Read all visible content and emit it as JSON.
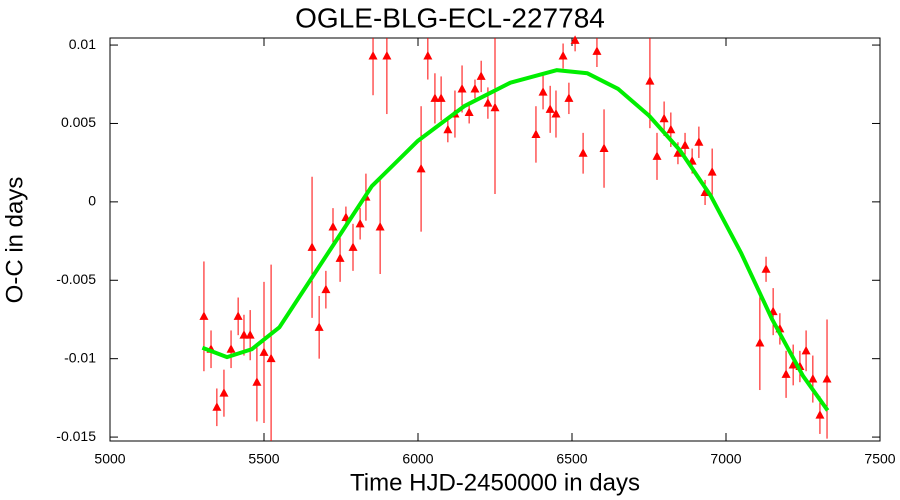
{
  "chart_data": {
    "type": "scatter",
    "title": "OGLE-BLG-ECL-227784",
    "x_label": "Time HJD-2450000 in days",
    "y_label": "O-C in days",
    "xlim": [
      5000,
      7500
    ],
    "ylim": [
      -0.01525,
      0.01045
    ],
    "xticks": [
      5000,
      5500,
      6000,
      6500,
      7000,
      7500
    ],
    "yticks": [
      -0.015,
      -0.01,
      -0.005,
      0,
      0.005,
      0.01
    ],
    "grid": false,
    "series": [
      {
        "type": "scatter",
        "color": "#ff0000",
        "x": [
          5305,
          5328,
          5347,
          5370,
          5393,
          5416,
          5435,
          5455,
          5477,
          5500,
          5523,
          5656,
          5679,
          5701,
          5724,
          5747,
          5766,
          5789,
          5812,
          5831,
          5854,
          5877,
          5899,
          6010,
          6032,
          6055,
          6075,
          6097,
          6120,
          6143,
          6166,
          6185,
          6205,
          6227,
          6250,
          6383,
          6406,
          6429,
          6448,
          6471,
          6490,
          6510,
          6536,
          6581,
          6604,
          6753,
          6776,
          6799,
          6821,
          6844,
          6867,
          6890,
          6912,
          6932,
          6955,
          7110,
          7130,
          7153,
          7175,
          7195,
          7218,
          7240,
          7260,
          7282,
          7305,
          7328
        ],
        "values": [
          -0.0073,
          -0.0094,
          -0.0131,
          -0.0122,
          -0.0094,
          -0.0073,
          -0.0085,
          -0.0085,
          -0.0115,
          -0.0096,
          -0.01,
          -0.0029,
          -0.008,
          -0.0056,
          -0.0016,
          -0.0036,
          -0.001,
          -0.0029,
          -0.0014,
          0.0003,
          0.0093,
          -0.0016,
          0.0093,
          0.0021,
          0.0093,
          0.0066,
          0.0066,
          0.0046,
          0.0056,
          0.0072,
          0.0057,
          0.0072,
          0.008,
          0.0063,
          0.006,
          0.0043,
          0.007,
          0.0059,
          0.0056,
          0.0093,
          0.0066,
          0.0103,
          0.0031,
          0.0096,
          0.0034,
          0.0077,
          0.0029,
          0.0053,
          0.0046,
          0.0031,
          0.0036,
          0.0026,
          0.0038,
          0.0006,
          0.0019,
          -0.009,
          -0.0043,
          -0.007,
          -0.0081,
          -0.011,
          -0.0104,
          -0.0105,
          -0.0095,
          -0.0113,
          -0.0136,
          -0.0113
        ],
        "errors": [
          0.0035,
          0.0012,
          0.0012,
          0.0015,
          0.0012,
          0.0012,
          0.0013,
          0.0016,
          0.0025,
          0.0045,
          0.006,
          0.0045,
          0.002,
          0.0012,
          0.0012,
          0.0015,
          0.0007,
          0.0015,
          0.001,
          0.0015,
          0.0025,
          0.003,
          0.0037,
          0.004,
          0.0015,
          0.0016,
          0.0014,
          0.0008,
          0.0015,
          0.0015,
          0.0007,
          0.0006,
          0.001,
          0.001,
          0.0055,
          0.0018,
          0.0011,
          0.0015,
          0.0015,
          0.0008,
          0.001,
          0.0007,
          0.0013,
          0.001,
          0.0025,
          0.003,
          0.0015,
          0.0011,
          0.0011,
          0.0007,
          0.0008,
          0.0008,
          0.001,
          0.0008,
          0.0015,
          0.003,
          0.0008,
          0.0015,
          0.001,
          0.0015,
          0.0013,
          0.001,
          0.0013,
          0.0015,
          0.0012,
          0.0038
        ]
      },
      {
        "type": "line",
        "color": "#00ee00",
        "x": [
          5300,
          5380,
          5460,
          5550,
          5650,
          5750,
          5850,
          6000,
          6150,
          6300,
          6450,
          6550,
          6650,
          6750,
          6850,
          6950,
          7050,
          7150,
          7250,
          7330
        ],
        "values": [
          -0.0093,
          -0.0099,
          -0.0094,
          -0.008,
          -0.005,
          -0.002,
          0.001,
          0.0039,
          0.0061,
          0.0076,
          0.0084,
          0.0082,
          0.0072,
          0.0055,
          0.0033,
          0.0004,
          -0.0033,
          -0.0075,
          -0.0111,
          -0.0133
        ]
      }
    ]
  }
}
